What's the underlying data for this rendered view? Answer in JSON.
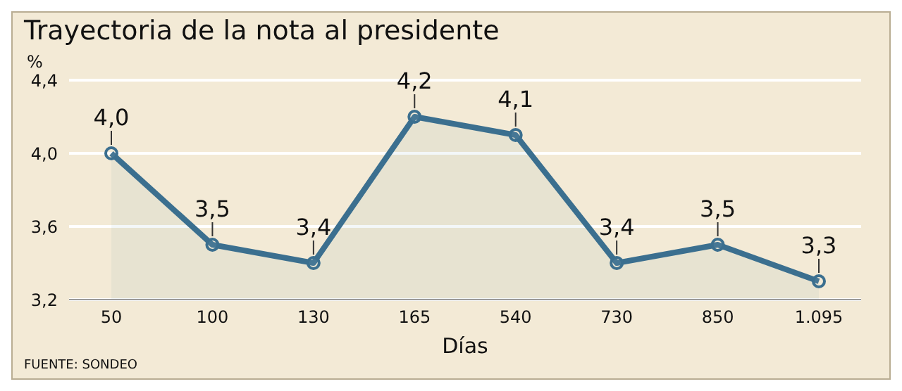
{
  "chart_data": {
    "type": "area",
    "title": "Trayectoria de la nota al presidente",
    "ylabel": "%",
    "xlabel": "Días",
    "categories": [
      "50",
      "100",
      "130",
      "165",
      "540",
      "730",
      "850",
      "1.095"
    ],
    "series": [
      {
        "color": "#3b6f8f",
        "values": [
          4.0,
          3.5,
          3.4,
          4.2,
          4.1,
          3.4,
          3.5,
          3.3
        ],
        "value_labels": [
          "4,0",
          "3,5",
          "3,4",
          "4,2",
          "4,1",
          "3,4",
          "3,5",
          "3,3"
        ]
      }
    ],
    "ylim": [
      3.2,
      4.4
    ],
    "yticks": [
      {
        "value": 3.2,
        "label": "3,2"
      },
      {
        "value": 3.6,
        "label": "3,6"
      },
      {
        "value": 4.0,
        "label": "4,0"
      },
      {
        "value": 4.4,
        "label": "4,4"
      }
    ],
    "grid": "y",
    "marker": "circle",
    "annotations": [
      "FUENTE: SONDEO"
    ]
  }
}
